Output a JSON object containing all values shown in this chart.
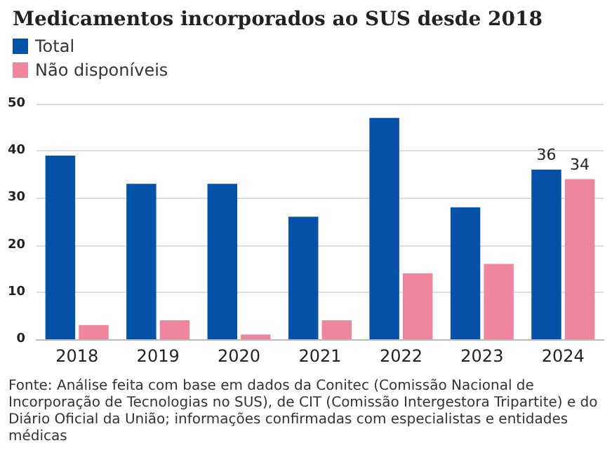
{
  "chart_data": {
    "type": "bar",
    "title": "Medicamentos incorporados ao SUS desde 2018",
    "categories": [
      "2018",
      "2019",
      "2020",
      "2021",
      "2022",
      "2023",
      "2024"
    ],
    "series": [
      {
        "name": "Total",
        "color": "#0652a8",
        "values": [
          39,
          33,
          33,
          26,
          47,
          28,
          36
        ],
        "value_labels": [
          null,
          null,
          null,
          null,
          null,
          null,
          "36"
        ]
      },
      {
        "name": "Não disponíveis",
        "color": "#f0869c",
        "values": [
          3,
          4,
          1,
          4,
          14,
          16,
          34
        ],
        "value_labels": [
          null,
          null,
          null,
          null,
          null,
          null,
          "34"
        ]
      }
    ],
    "ylim": [
      0,
      50
    ],
    "yticks": [
      0,
      10,
      20,
      30,
      40,
      50
    ],
    "grid": "y",
    "legend": "top left",
    "annotations": [
      "Fonte: Análise feita com base em dados da Conitec (Comissão Nacional de Incorporação de Tecnologias no SUS), de CIT (Comissão Intergestora Tripartite) e do Diário Oficial da União; informações confirmadas com especialistas e entidades médicas"
    ]
  }
}
